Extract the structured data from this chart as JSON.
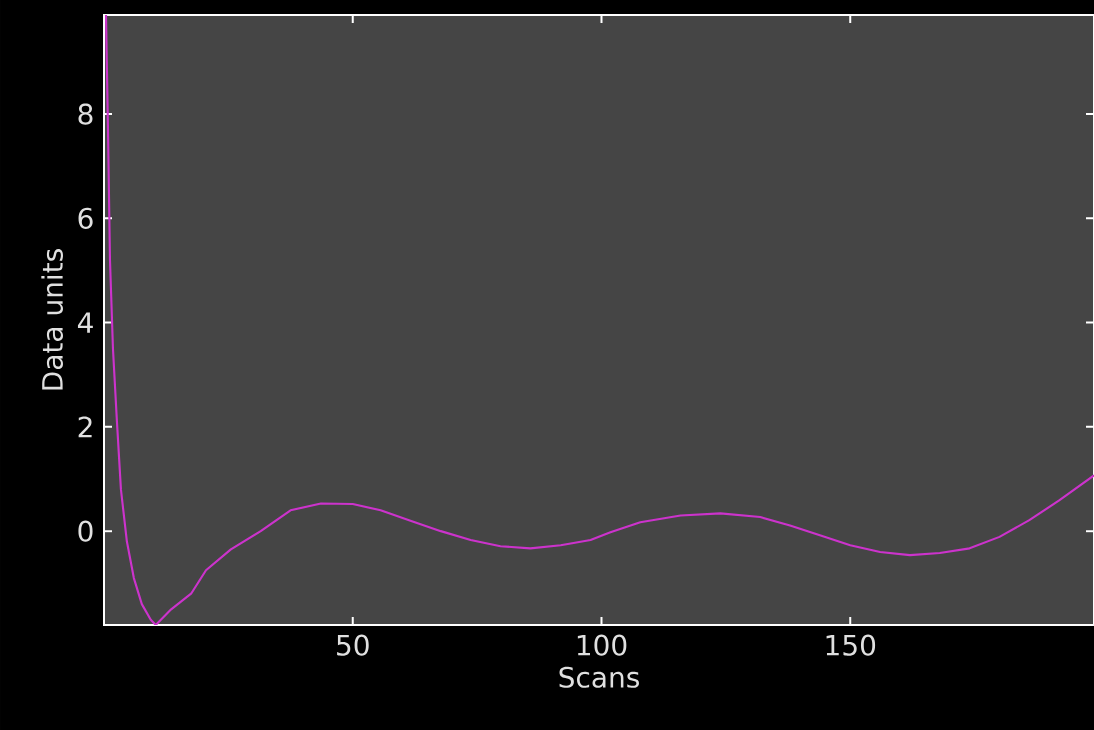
{
  "chart_data": {
    "type": "line",
    "xlabel": "Scans",
    "ylabel": "Data units",
    "xlim": [
      0,
      199
    ],
    "ylim": [
      -1.8,
      9.9
    ],
    "xticks": [
      50,
      100,
      150
    ],
    "yticks": [
      0,
      2,
      4,
      6,
      8
    ],
    "grid": false,
    "line_style": "solid",
    "marker": "none",
    "series": [
      {
        "color": "#cc33cc",
        "x": [
          0.4,
          0.8,
          1.2,
          1.8,
          2.6,
          3.4,
          4.6,
          6,
          7.6,
          9.4,
          10.4,
          13.5,
          17.5,
          20.5,
          25.5,
          31.5,
          37.5,
          43.6,
          50,
          55.6,
          61.6,
          67.7,
          73.7,
          79.7,
          85.7,
          91.8,
          97.8,
          101.8,
          107.8,
          115.9,
          123.9,
          131.9,
          137.9,
          143.9,
          150,
          156,
          162,
          168,
          174,
          180,
          186,
          192,
          199
        ],
        "values": [
          9.9,
          7.7,
          5.2,
          3.5,
          2.1,
          0.8,
          -0.2,
          -0.9,
          -1.4,
          -1.7,
          -1.8,
          -1.5,
          -1.2,
          -0.75,
          -0.35,
          0.0,
          0.4,
          0.53,
          0.52,
          0.4,
          0.2,
          0.0,
          -0.17,
          -0.29,
          -0.33,
          -0.27,
          -0.17,
          -0.02,
          0.17,
          0.3,
          0.34,
          0.27,
          0.11,
          -0.08,
          -0.27,
          -0.4,
          -0.46,
          -0.42,
          -0.33,
          -0.11,
          0.21,
          0.59,
          1.07
        ]
      }
    ]
  }
}
